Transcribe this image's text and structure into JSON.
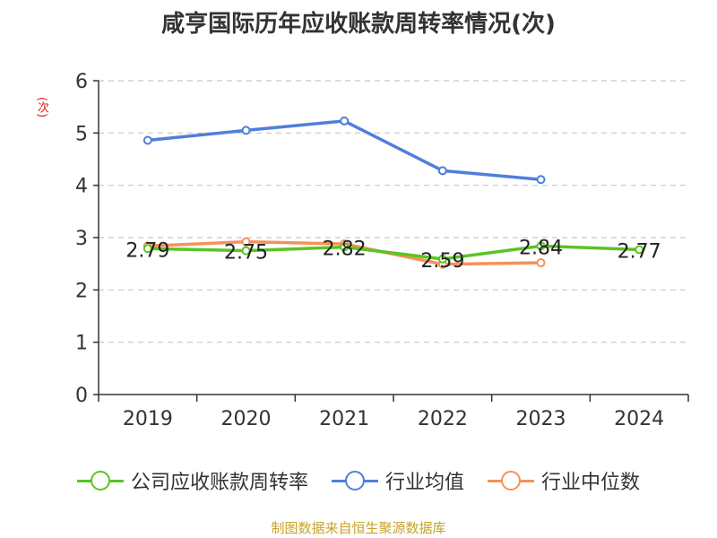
{
  "chart_data": {
    "type": "line",
    "title": "咸亨国际历年应收账款周转率情况(次)",
    "ylabel": "(次)",
    "categories": [
      "2019",
      "2020",
      "2021",
      "2022",
      "2023",
      "2024"
    ],
    "ylim": [
      0,
      6
    ],
    "yticks": [
      0,
      1,
      2,
      3,
      4,
      5,
      6
    ],
    "grid": true,
    "legend_position": "bottom",
    "series": [
      {
        "name": "公司应收账款周转率",
        "color": "#5ac423",
        "values": [
          2.79,
          2.75,
          2.82,
          2.59,
          2.84,
          2.77
        ],
        "labels": [
          "2.79",
          "2.75",
          "2.82",
          "2.59",
          "2.84",
          "2.77"
        ]
      },
      {
        "name": "行业均值",
        "color": "#4f7fdb",
        "values": [
          4.86,
          5.05,
          5.23,
          4.28,
          4.11,
          null
        ]
      },
      {
        "name": "行业中位数",
        "color": "#f5915a",
        "values": [
          2.84,
          2.92,
          2.88,
          2.49,
          2.52,
          null
        ]
      }
    ]
  },
  "source": "制图数据来自恒生聚源数据库"
}
